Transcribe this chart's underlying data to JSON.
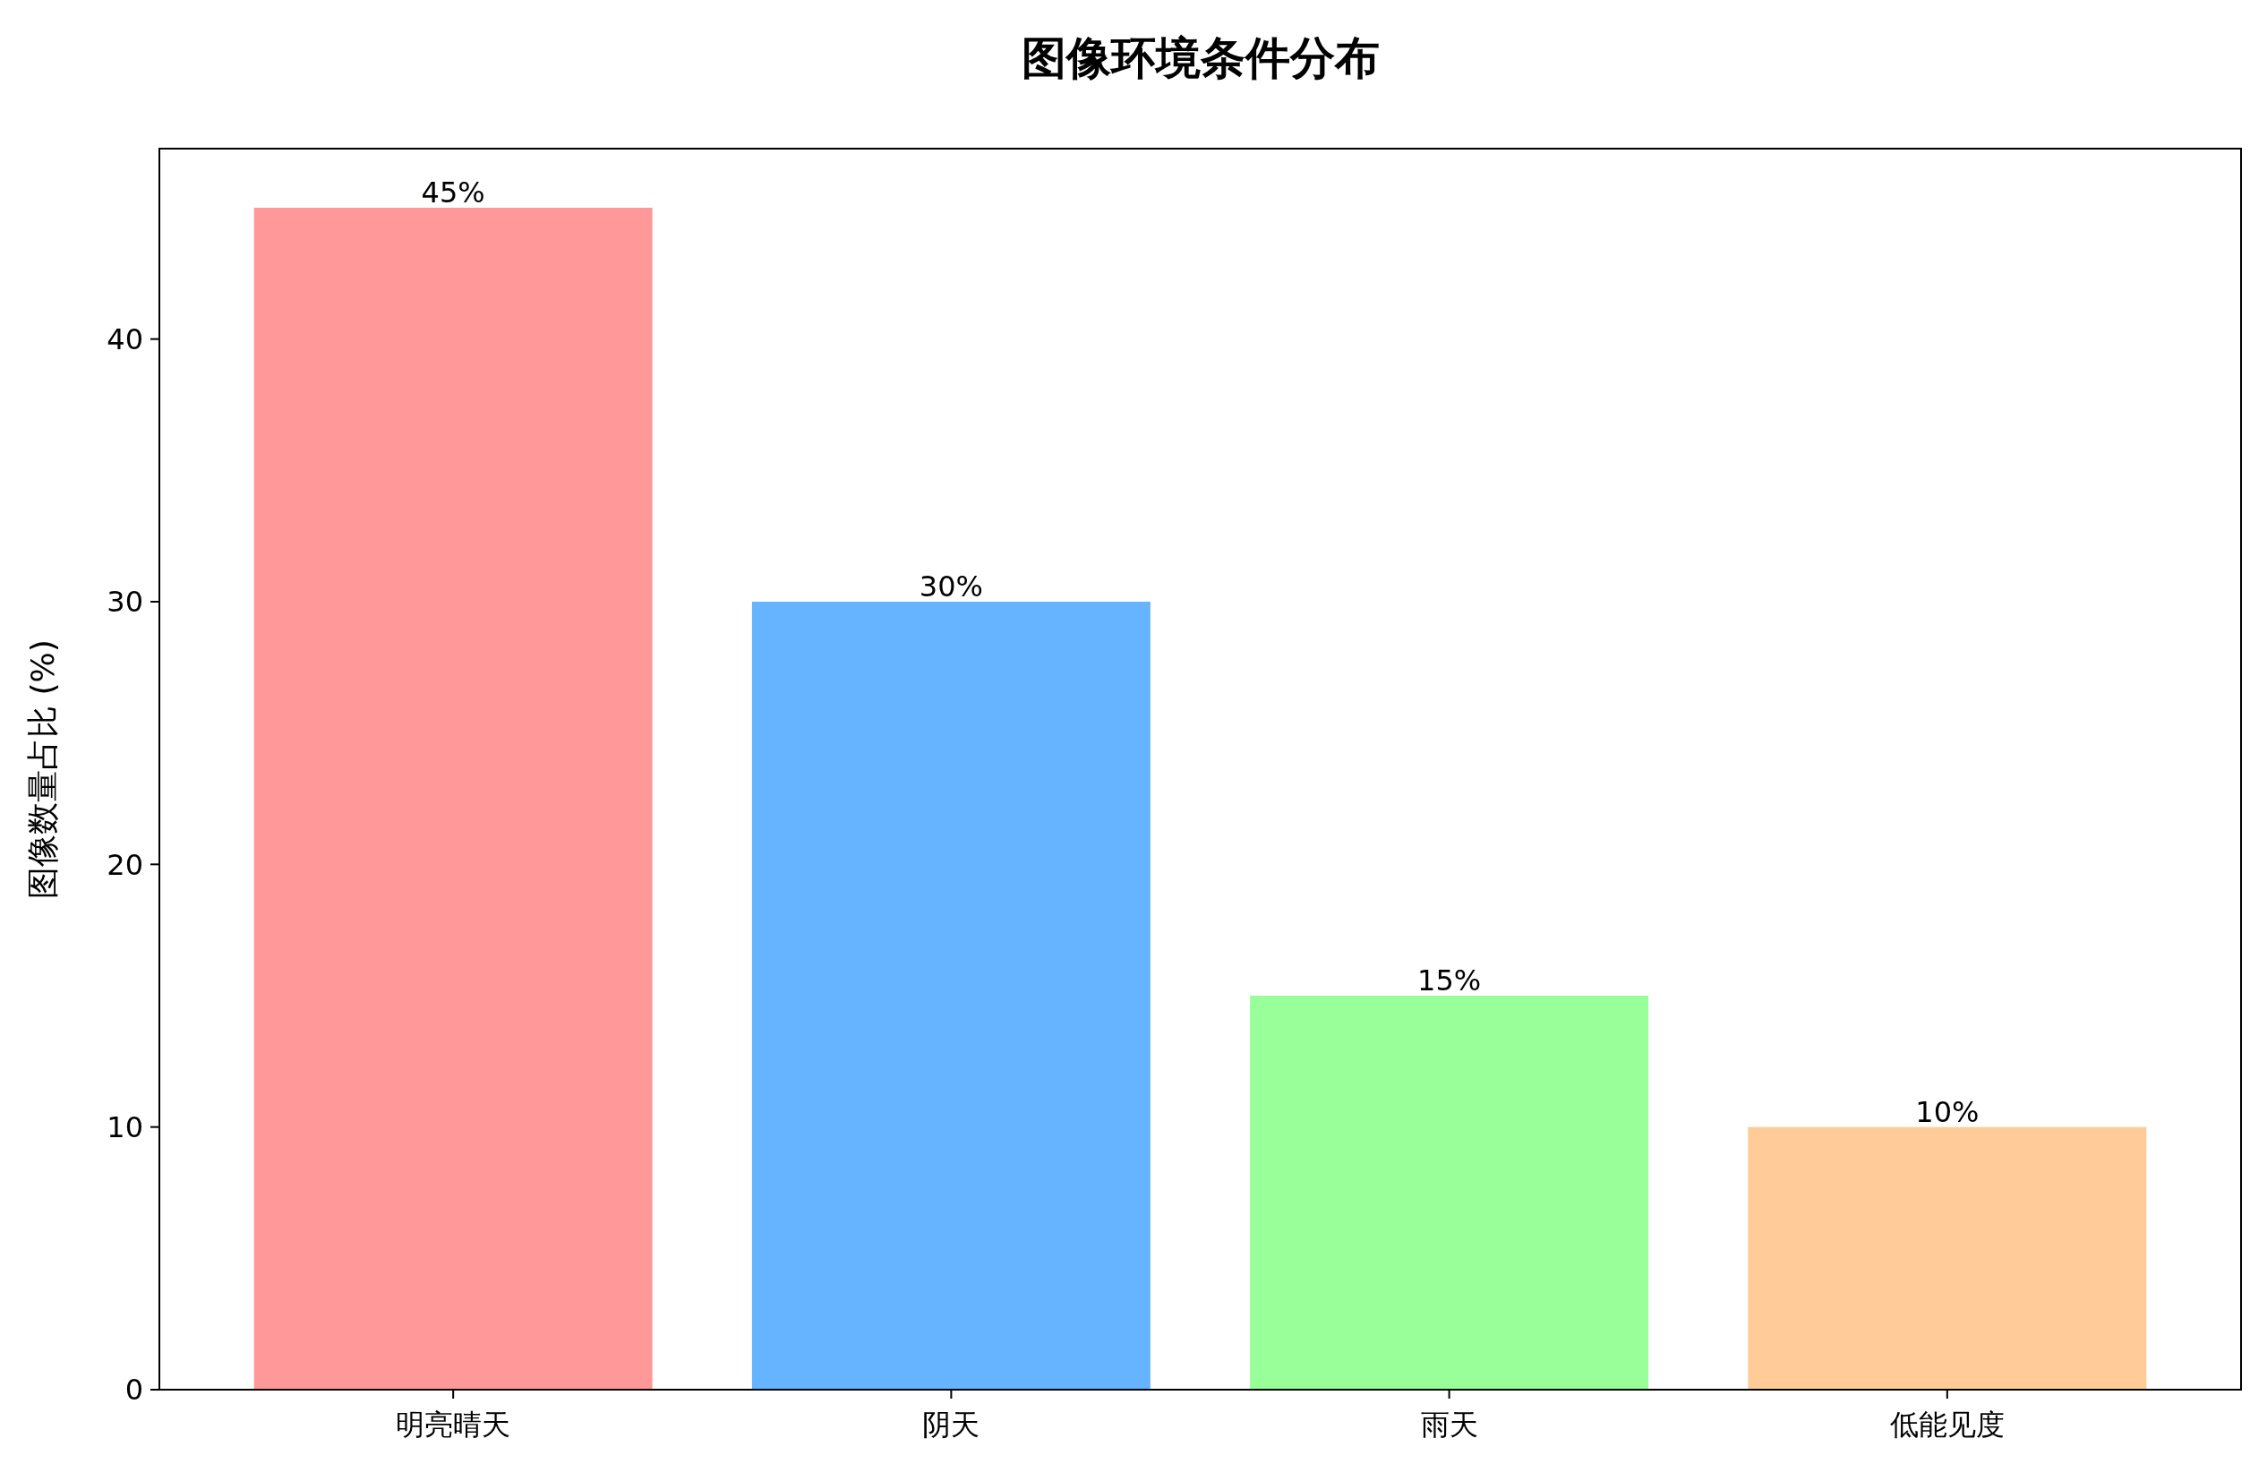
{
  "chart_data": {
    "type": "bar",
    "title": "图像环境条件分布",
    "ylabel": "图像数量占比 (%)",
    "categories": [
      "明亮晴天",
      "阴天",
      "雨天",
      "低能见度"
    ],
    "values": [
      45,
      30,
      15,
      10
    ],
    "value_labels": [
      "45%",
      "30%",
      "15%",
      "10%"
    ],
    "colors": [
      "#ff9999",
      "#66b3ff",
      "#99ff99",
      "#ffcc99"
    ],
    "ylim": [
      0,
      47.25
    ],
    "yticks": [
      0,
      10,
      20,
      30,
      40
    ]
  }
}
